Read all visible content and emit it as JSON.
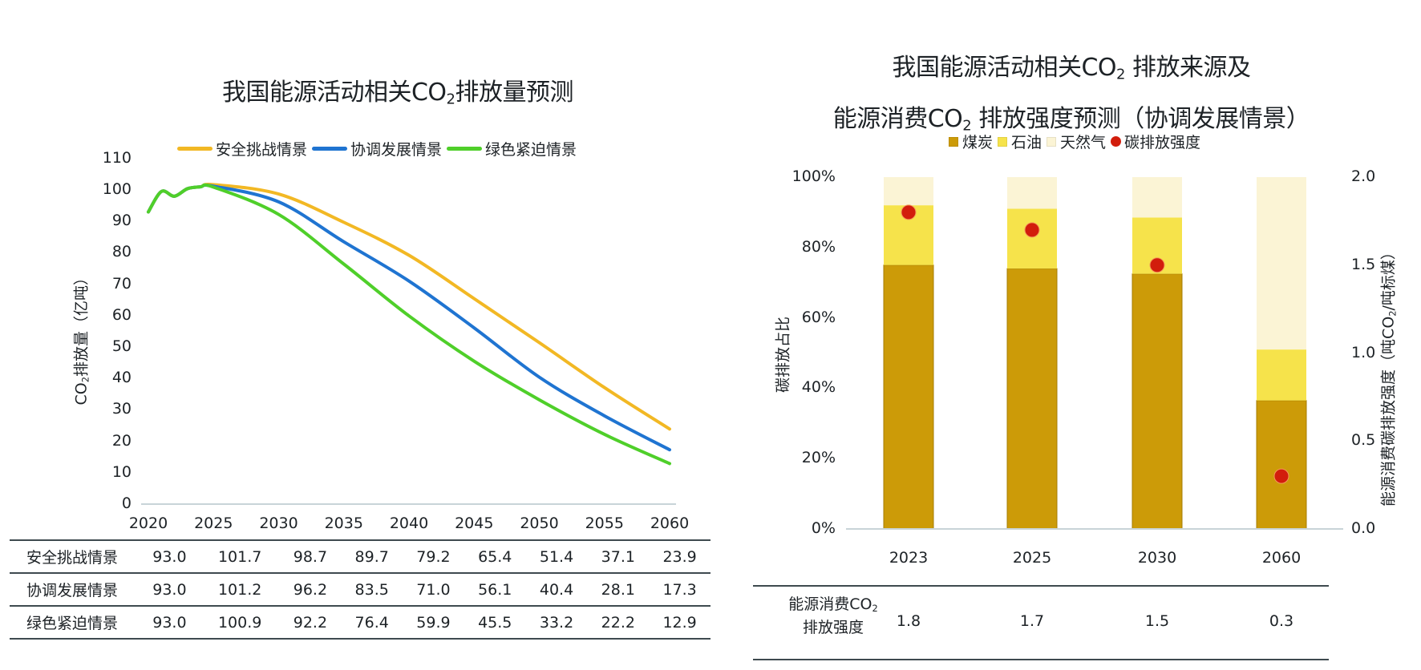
{
  "left_chart": {
    "title_pre": "我国能源活动相关CO",
    "title_sub": "2",
    "title_post": "排放量预测",
    "ylabel_pre": "CO",
    "ylabel_sub": "2",
    "ylabel_post": "排放量（亿吨）"
  },
  "right_chart": {
    "title_line1_pre": "我国能源活动相关CO",
    "title_line1_sub": "2",
    "title_line1_post": " 排放来源及",
    "title_line2_pre": "能源消费CO",
    "title_line2_sub": "2",
    "title_line2_post": " 排放强度预测（协调发展情景）",
    "ylabel_left": "碳排放占比",
    "ylabel_right_pre": "能源消费碳排放强度（吨CO",
    "ylabel_right_sub": "2",
    "ylabel_right_post": "/吨标煤）",
    "table_label_line1_pre": "能源消费CO",
    "table_label_line1_sub": "2",
    "table_label_line2": "排放强度"
  },
  "colors": {
    "safety": "#f2b824",
    "coordinated": "#1f74d1",
    "green": "#4fcf2a",
    "coal": "#cc9b08",
    "oil": "#f6e34b",
    "gas": "#fbf4d5",
    "intensity": "#d21d0c",
    "axis": "#c8d4d8",
    "text": "#1d2226"
  },
  "chart_data": [
    {
      "type": "line",
      "title": "我国能源活动相关CO2排放量预测",
      "xlabel": "",
      "ylabel": "CO2排放量（亿吨）",
      "ylim": [
        0,
        110
      ],
      "xlim": [
        2020,
        2060
      ],
      "yticks": [
        0,
        10,
        20,
        30,
        40,
        50,
        60,
        70,
        80,
        90,
        100,
        110
      ],
      "xticks": [
        "2020",
        "2025",
        "2030",
        "2035",
        "2040",
        "2045",
        "2050",
        "2055",
        "2060"
      ],
      "grid": false,
      "legend": "top",
      "x": [
        2020,
        2025,
        2030,
        2035,
        2040,
        2045,
        2050,
        2055,
        2060
      ],
      "series": [
        {
          "name": "安全挑战情景",
          "key": "safety",
          "values": [
            93.0,
            101.7,
            98.7,
            89.7,
            79.2,
            65.4,
            51.4,
            37.1,
            23.9
          ]
        },
        {
          "name": "协调发展情景",
          "key": "coordinated",
          "values": [
            93.0,
            101.2,
            96.2,
            83.5,
            71.0,
            56.1,
            40.4,
            28.1,
            17.3
          ]
        },
        {
          "name": "绿色紧迫情景",
          "key": "green",
          "values": [
            93.0,
            100.9,
            92.2,
            76.4,
            59.9,
            45.5,
            33.2,
            22.2,
            12.9
          ]
        }
      ],
      "early_history": {
        "x": [
          2020,
          2021,
          2022,
          2023,
          2024
        ],
        "values": [
          93.0,
          99.5,
          98.0,
          100.4,
          101.0
        ]
      },
      "table": {
        "rows": [
          {
            "label": "安全挑战情景",
            "values": [
              "93.0",
              "101.7",
              "98.7",
              "89.7",
              "79.2",
              "65.4",
              "51.4",
              "37.1",
              "23.9"
            ]
          },
          {
            "label": "协调发展情景",
            "values": [
              "93.0",
              "101.2",
              "96.2",
              "83.5",
              "71.0",
              "56.1",
              "40.4",
              "28.1",
              "17.3"
            ]
          },
          {
            "label": "绿色紧迫情景",
            "values": [
              "93.0",
              "100.9",
              "92.2",
              "76.4",
              "59.9",
              "45.5",
              "33.2",
              "22.2",
              "12.9"
            ]
          }
        ]
      }
    },
    {
      "type": "bar",
      "stacked": true,
      "title": "我国能源活动相关CO2 排放来源及能源消费CO2 排放强度预测（协调发展情景）",
      "xlabel": "",
      "ylabel": "碳排放占比",
      "y2label": "能源消费碳排放强度（吨CO2/吨标煤）",
      "ylim": [
        0,
        100
      ],
      "y2lim": [
        0,
        2.0
      ],
      "yticks": [
        "0%",
        "20%",
        "40%",
        "60%",
        "80%",
        "100%"
      ],
      "y2ticks": [
        "0.0",
        "0.5",
        "1.0",
        "1.5",
        "2.0"
      ],
      "grid": false,
      "legend": "top",
      "categories": [
        "2023",
        "2025",
        "2030",
        "2060"
      ],
      "series": [
        {
          "name": "煤炭",
          "key": "coal",
          "values": [
            75,
            74,
            72.5,
            36.5
          ]
        },
        {
          "name": "石油",
          "key": "oil",
          "values": [
            17,
            17,
            16,
            14.5
          ]
        },
        {
          "name": "天然气",
          "key": "gas",
          "values": [
            8,
            9,
            11.5,
            49
          ]
        }
      ],
      "scatter": {
        "name": "碳排放强度",
        "key": "intensity",
        "axis": "y2",
        "values": [
          1.8,
          1.7,
          1.5,
          0.3
        ]
      },
      "table": {
        "values": [
          "1.8",
          "1.7",
          "1.5",
          "0.3"
        ]
      }
    }
  ]
}
